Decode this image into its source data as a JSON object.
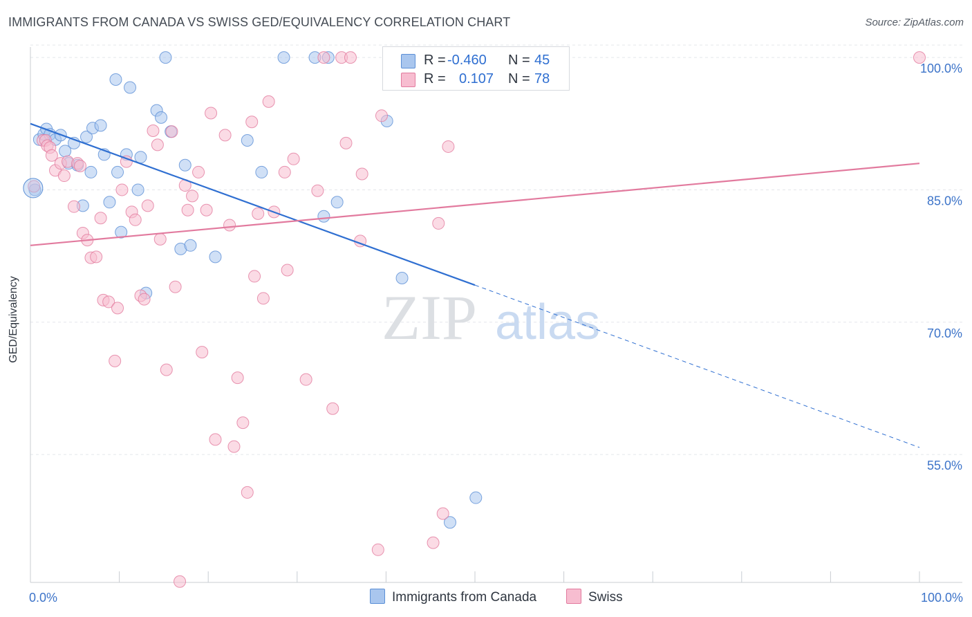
{
  "title": "IMMIGRANTS FROM CANADA VS SWISS GED/EQUIVALENCY CORRELATION CHART",
  "source": "Source: ZipAtlas.com",
  "watermark": {
    "zip": "ZIP",
    "atlas": "atlas"
  },
  "legend": {
    "rows": [
      {
        "r_label": "R =",
        "r_value": "-0.460",
        "n_label": "N =",
        "n_value": "45",
        "color": "#a9c6ee",
        "stroke": "#5b8fd6"
      },
      {
        "r_label": "R =",
        "r_value": "0.107",
        "n_label": "N =",
        "n_value": "78",
        "color": "#f7bdd0",
        "stroke": "#e27a9e"
      }
    ]
  },
  "chart_data": {
    "type": "scatter",
    "title": "IMMIGRANTS FROM CANADA VS SWISS GED/EQUIVALENCY CORRELATION CHART",
    "xlabel": "",
    "ylabel": "GED/Equivalency",
    "xlim": [
      0,
      100
    ],
    "ylim": [
      40.5,
      101.5
    ],
    "x_tick_labels": [
      "0.0%",
      "100.0%"
    ],
    "y_ticks": [
      55,
      70,
      85,
      100
    ],
    "y_tick_labels": [
      "55.0%",
      "70.0%",
      "85.0%",
      "100.0%"
    ],
    "series": [
      {
        "name": "Immigrants from Canada",
        "color": "#a9c6ee",
        "stroke": "#5b8fd6",
        "line_color": "#2f6fd1",
        "trend": {
          "x0": 0,
          "y0": 92.5,
          "x1": 50,
          "y1": 74.2,
          "dashed_to_x": 100,
          "dashed_to_y": 55.8
        },
        "points": [
          [
            0.5,
            85.0
          ],
          [
            1.0,
            90.7
          ],
          [
            1.5,
            91.3
          ],
          [
            1.8,
            91.9
          ],
          [
            2.2,
            91.3
          ],
          [
            2.8,
            90.7
          ],
          [
            3.4,
            91.2
          ],
          [
            3.9,
            89.4
          ],
          [
            4.3,
            88.0
          ],
          [
            4.9,
            90.3
          ],
          [
            5.3,
            87.8
          ],
          [
            5.9,
            83.2
          ],
          [
            6.3,
            91.0
          ],
          [
            6.8,
            87.0
          ],
          [
            7.0,
            92.0
          ],
          [
            7.9,
            92.3
          ],
          [
            8.3,
            89.0
          ],
          [
            8.9,
            83.6
          ],
          [
            9.6,
            97.5
          ],
          [
            9.8,
            87.0
          ],
          [
            10.2,
            80.2
          ],
          [
            10.8,
            89.0
          ],
          [
            11.2,
            96.6
          ],
          [
            12.1,
            85.0
          ],
          [
            12.4,
            88.7
          ],
          [
            13.0,
            73.3
          ],
          [
            14.2,
            94.0
          ],
          [
            14.7,
            93.2
          ],
          [
            15.2,
            100.0
          ],
          [
            15.8,
            91.6
          ],
          [
            16.9,
            78.3
          ],
          [
            17.4,
            87.8
          ],
          [
            18.0,
            78.7
          ],
          [
            20.8,
            77.4
          ],
          [
            24.4,
            90.6
          ],
          [
            26.0,
            87.0
          ],
          [
            28.5,
            100.0
          ],
          [
            32.0,
            100.0
          ],
          [
            33.5,
            100.0
          ],
          [
            33.0,
            82.0
          ],
          [
            34.5,
            83.6
          ],
          [
            40.1,
            92.8
          ],
          [
            41.8,
            75.0
          ],
          [
            47.2,
            47.3
          ],
          [
            50.1,
            50.1
          ]
        ]
      },
      {
        "name": "Swiss",
        "color": "#f7bdd0",
        "stroke": "#e27a9e",
        "line_color": "#e27a9e",
        "trend": {
          "x0": 0,
          "y0": 78.7,
          "x1": 100,
          "y1": 88.0
        },
        "points": [
          [
            0.4,
            85.4
          ],
          [
            1.4,
            90.6
          ],
          [
            1.7,
            90.6
          ],
          [
            1.9,
            90.0
          ],
          [
            2.2,
            89.8
          ],
          [
            2.4,
            88.9
          ],
          [
            2.8,
            87.2
          ],
          [
            3.4,
            88.0
          ],
          [
            3.8,
            86.6
          ],
          [
            4.2,
            88.2
          ],
          [
            4.9,
            83.1
          ],
          [
            5.3,
            88.0
          ],
          [
            5.6,
            87.7
          ],
          [
            5.9,
            80.1
          ],
          [
            6.4,
            79.3
          ],
          [
            6.8,
            77.3
          ],
          [
            7.4,
            77.4
          ],
          [
            7.9,
            81.8
          ],
          [
            8.2,
            72.5
          ],
          [
            8.8,
            72.3
          ],
          [
            9.5,
            65.6
          ],
          [
            9.8,
            71.6
          ],
          [
            10.3,
            85.0
          ],
          [
            10.8,
            88.2
          ],
          [
            11.4,
            82.5
          ],
          [
            11.8,
            81.6
          ],
          [
            12.4,
            73.0
          ],
          [
            12.8,
            72.6
          ],
          [
            13.2,
            83.2
          ],
          [
            13.8,
            91.7
          ],
          [
            14.3,
            90.1
          ],
          [
            14.6,
            79.4
          ],
          [
            15.3,
            64.6
          ],
          [
            15.9,
            91.6
          ],
          [
            16.3,
            74.0
          ],
          [
            16.8,
            40.6
          ],
          [
            17.4,
            85.5
          ],
          [
            17.7,
            82.7
          ],
          [
            18.2,
            84.3
          ],
          [
            18.9,
            87.0
          ],
          [
            19.3,
            66.6
          ],
          [
            19.8,
            82.7
          ],
          [
            20.3,
            93.7
          ],
          [
            20.8,
            56.7
          ],
          [
            21.9,
            91.2
          ],
          [
            22.4,
            81.0
          ],
          [
            22.9,
            55.9
          ],
          [
            23.3,
            63.7
          ],
          [
            23.9,
            58.6
          ],
          [
            24.4,
            50.7
          ],
          [
            24.9,
            92.7
          ],
          [
            25.2,
            75.2
          ],
          [
            25.6,
            82.3
          ],
          [
            26.2,
            72.7
          ],
          [
            26.8,
            95.0
          ],
          [
            27.4,
            82.5
          ],
          [
            28.6,
            87.0
          ],
          [
            28.9,
            75.9
          ],
          [
            29.6,
            88.5
          ],
          [
            31.0,
            63.5
          ],
          [
            32.3,
            84.9
          ],
          [
            33.0,
            100.0
          ],
          [
            34.0,
            60.2
          ],
          [
            35.0,
            100.0
          ],
          [
            35.5,
            90.3
          ],
          [
            36.0,
            100.0
          ],
          [
            37.1,
            79.2
          ],
          [
            37.3,
            86.8
          ],
          [
            39.1,
            44.2
          ],
          [
            39.5,
            93.4
          ],
          [
            41.0,
            100.0
          ],
          [
            45.0,
            100.0
          ],
          [
            45.3,
            45.0
          ],
          [
            45.9,
            81.2
          ],
          [
            46.4,
            48.3
          ],
          [
            47.0,
            89.9
          ],
          [
            50.0,
            100.0
          ],
          [
            100.0,
            100.0
          ]
        ]
      }
    ]
  }
}
